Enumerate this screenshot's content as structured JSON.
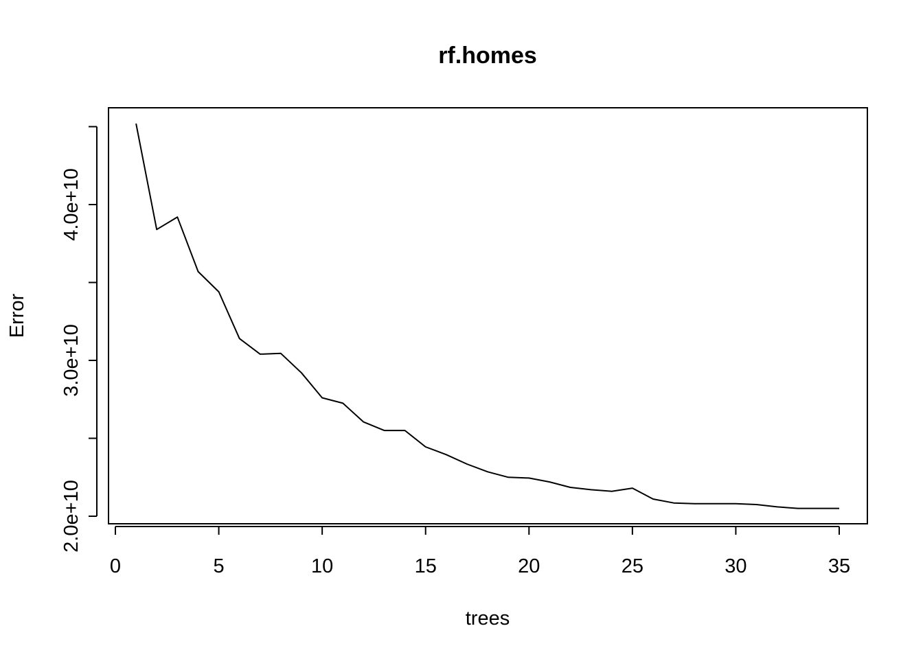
{
  "chart_data": {
    "type": "line",
    "title": "rf.homes",
    "xlabel": "trees",
    "ylabel": "Error",
    "xlim": [
      0,
      35
    ],
    "ylim": [
      20000000000,
      45000000000
    ],
    "grid": false,
    "legend": "none",
    "x_ticks": [
      0,
      5,
      10,
      15,
      20,
      25,
      30,
      35
    ],
    "x_tick_labels": [
      "0",
      "5",
      "10",
      "15",
      "20",
      "25",
      "30",
      "35"
    ],
    "y_ticks": [
      20000000000,
      25000000000,
      30000000000,
      35000000000,
      40000000000,
      45000000000
    ],
    "y_tick_labels": [
      "2.0e+10",
      "",
      "3.0e+10",
      "",
      "4.0e+10",
      ""
    ],
    "series": [
      {
        "color": "#000000",
        "x": [
          1,
          2,
          3,
          4,
          5,
          6,
          7,
          8,
          9,
          10,
          11,
          12,
          13,
          14,
          15,
          16,
          17,
          18,
          19,
          20,
          21,
          22,
          23,
          24,
          25,
          26,
          27,
          28,
          29,
          30,
          31,
          32,
          33,
          34,
          35
        ],
        "values": [
          45200000000,
          38400000000,
          39200000000,
          35700000000,
          34400000000,
          31400000000,
          30400000000,
          30450000000,
          29200000000,
          27600000000,
          27250000000,
          26050000000,
          25500000000,
          25500000000,
          24450000000,
          23950000000,
          23350000000,
          22850000000,
          22500000000,
          22450000000,
          22200000000,
          21850000000,
          21700000000,
          21600000000,
          21800000000,
          21100000000,
          20850000000,
          20800000000,
          20800000000,
          20800000000,
          20750000000,
          20600000000,
          20500000000,
          20500000000,
          20500000000
        ]
      }
    ]
  }
}
